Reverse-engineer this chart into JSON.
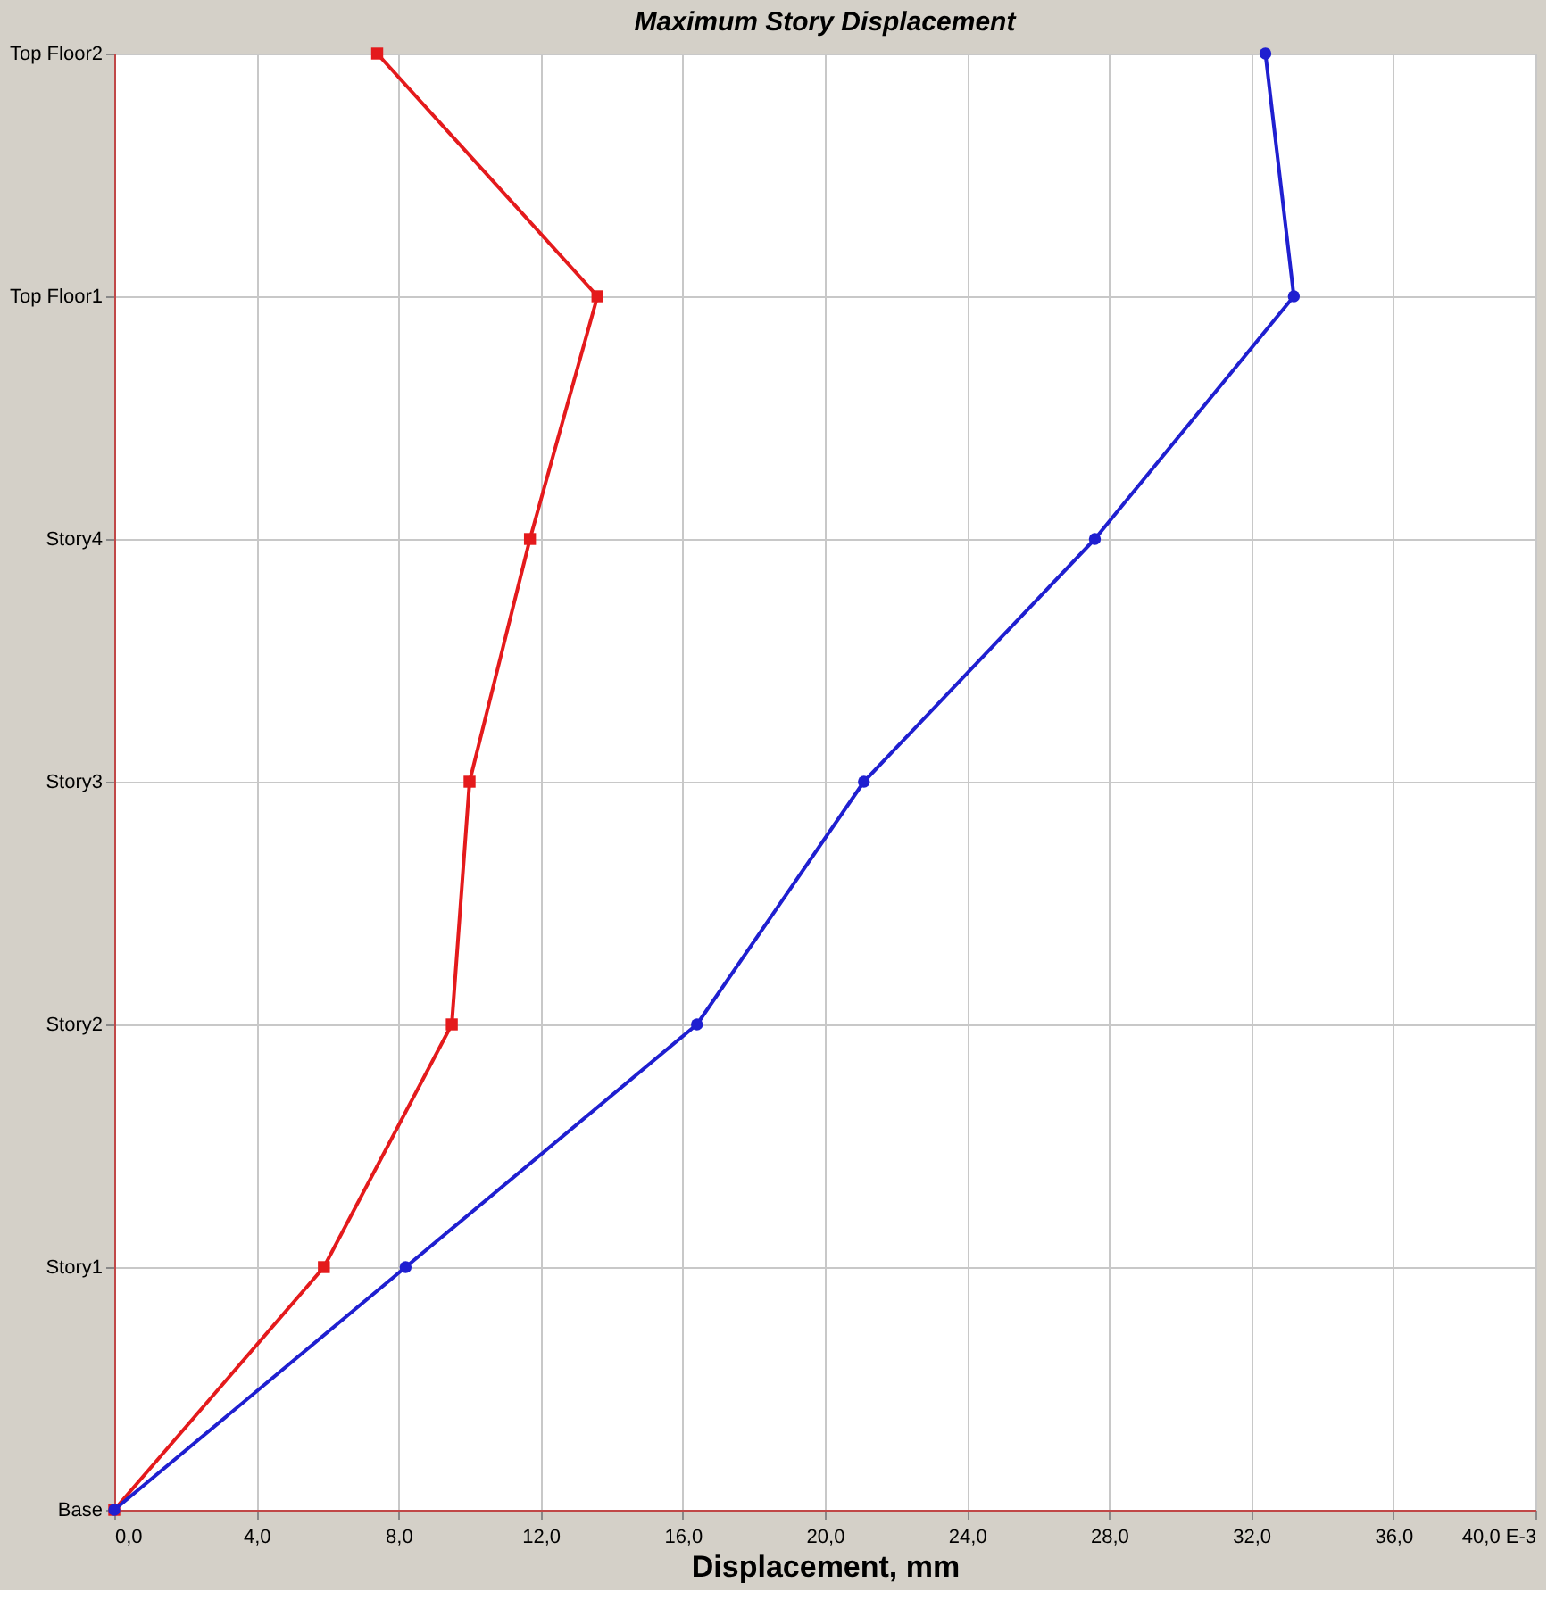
{
  "chart_data": {
    "type": "line",
    "orientation": "horizontal",
    "title": "Maximum Story Displacement",
    "xlabel": "Displacement, mm",
    "categories": [
      "Top Floor2",
      "Top Floor1",
      "Story4",
      "Story3",
      "Story2",
      "Story1",
      "Base"
    ],
    "xlim": [
      0,
      40
    ],
    "xticks": [
      {
        "value": 0,
        "label": "0,0"
      },
      {
        "value": 4,
        "label": "4,0"
      },
      {
        "value": 8,
        "label": "8,0"
      },
      {
        "value": 12,
        "label": "12,0"
      },
      {
        "value": 16,
        "label": "16,0"
      },
      {
        "value": 20,
        "label": "20,0"
      },
      {
        "value": 24,
        "label": "24,0"
      },
      {
        "value": 28,
        "label": "28,0"
      },
      {
        "value": 32,
        "label": "32,0"
      },
      {
        "value": 36,
        "label": "36,0"
      },
      {
        "value": 40,
        "label": "40,0 E-3"
      }
    ],
    "grid": true,
    "line_style": "solid",
    "series": [
      {
        "color": "#e41a1c",
        "marker": "square",
        "values": [
          7.4,
          13.6,
          11.7,
          10.0,
          9.5,
          5.9,
          0
        ]
      },
      {
        "color": "#1f1fd0",
        "marker": "circle",
        "values": [
          32.4,
          33.2,
          27.6,
          21.1,
          16.4,
          8.2,
          0
        ]
      }
    ]
  }
}
